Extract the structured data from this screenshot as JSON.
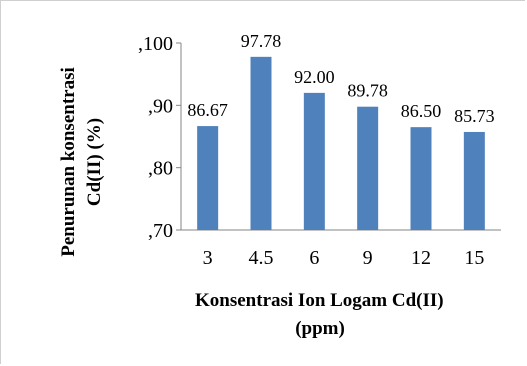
{
  "chart_data": {
    "type": "bar",
    "categories": [
      "3",
      "4.5",
      "6",
      "9",
      "12",
      "15"
    ],
    "values": [
      0.8667,
      0.9778,
      0.92,
      0.8978,
      0.865,
      0.8573
    ],
    "data_labels": [
      "86.67",
      "97.78",
      "92.00",
      "89.78",
      "86.50",
      "85.73"
    ],
    "y_ticks": [
      ",70",
      ",80",
      ",90",
      ",100"
    ],
    "ylim": [
      0.7,
      1.0
    ],
    "xlabel_line1": "Konsentrasi Ion Logam Cd(II)",
    "xlabel_line2": "(ppm)",
    "ylabel_line1": "Penurunan konsentrasi",
    "ylabel_line2": "Cd(II) (%)",
    "grid": false,
    "legend": "none",
    "bar_color": "#4F81BD"
  }
}
